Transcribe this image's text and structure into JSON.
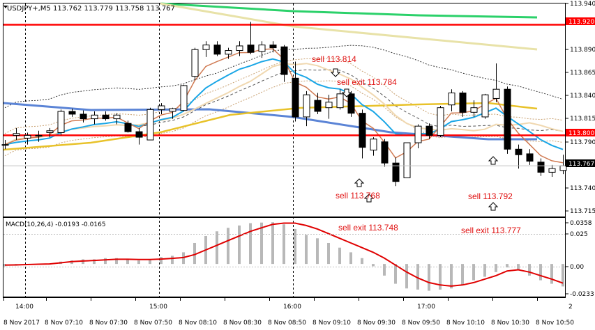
{
  "header": {
    "title": "USDJPY+,M5  113.762 113.779 113.758 113.767"
  },
  "price_axis": {
    "labels": [
      "113.940",
      "113.915",
      "113.890",
      "113.865",
      "113.840",
      "113.815",
      "113.790",
      "113.765",
      "113.740",
      "113.715"
    ],
    "badges": [
      {
        "text": "113.920",
        "color": "#ff0000"
      },
      {
        "text": "113.800",
        "color": "#ff0000"
      },
      {
        "text": "113.767",
        "color": "#000000"
      }
    ]
  },
  "macd": {
    "title": "MACD(10,26,4) -0.0193 -0.0165",
    "axis_labels": [
      "0.0358",
      "0.025",
      "0.00",
      "-0.0233"
    ]
  },
  "time_axis": {
    "top_labels": [
      "14:00",
      "15:00",
      "16:00",
      "17:00"
    ],
    "bottom_labels": [
      "8 Nov 2017",
      "8 Nov 07:10",
      "8 Nov 07:30",
      "8 Nov 07:50",
      "8 Nov 08:10",
      "8 Nov 08:30",
      "8 Nov 08:50",
      "8 Nov 09:10",
      "8 Nov 09:30",
      "8 Nov 09:50",
      "8 Nov 10:10",
      "8 Nov 10:30",
      "8 Nov 10:50"
    ]
  },
  "annotations": [
    {
      "text": "sell 113.814",
      "color": "#e01010"
    },
    {
      "text": "sell exit 113.784",
      "color": "#e01010"
    },
    {
      "text": "sell 113.768",
      "color": "#e01010"
    },
    {
      "text": "sell 113.792",
      "color": "#e01010"
    },
    {
      "text": "sell exit 113.748",
      "color": "#e01010"
    },
    {
      "text": "sell exit 113.777",
      "color": "#e01010"
    }
  ],
  "levels": [
    {
      "price": 113.92,
      "color": "#ff0000"
    },
    {
      "price": 113.8,
      "color": "#ff0000"
    }
  ],
  "chart_data": {
    "type": "candlestick",
    "symbol": "USDJPY+",
    "timeframe": "M5",
    "ylim": [
      113.712,
      113.943
    ],
    "candles": [
      {
        "o": 113.79,
        "h": 113.795,
        "l": 113.785,
        "c": 113.79
      },
      {
        "o": 113.8,
        "h": 113.808,
        "l": 113.795,
        "c": 113.802
      },
      {
        "o": 113.797,
        "h": 113.803,
        "l": 113.79,
        "c": 113.8
      },
      {
        "o": 113.8,
        "h": 113.805,
        "l": 113.793,
        "c": 113.8
      },
      {
        "o": 113.803,
        "h": 113.808,
        "l": 113.798,
        "c": 113.805
      },
      {
        "o": 113.803,
        "h": 113.828,
        "l": 113.8,
        "c": 113.826
      },
      {
        "o": 113.826,
        "h": 113.829,
        "l": 113.82,
        "c": 113.823
      },
      {
        "o": 113.823,
        "h": 113.827,
        "l": 113.814,
        "c": 113.818
      },
      {
        "o": 113.818,
        "h": 113.826,
        "l": 113.812,
        "c": 113.822
      },
      {
        "o": 113.822,
        "h": 113.826,
        "l": 113.816,
        "c": 113.818
      },
      {
        "o": 113.818,
        "h": 113.824,
        "l": 113.812,
        "c": 113.822
      },
      {
        "o": 113.813,
        "h": 113.816,
        "l": 113.803,
        "c": 113.804
      },
      {
        "o": 113.804,
        "h": 113.808,
        "l": 113.79,
        "c": 113.798
      },
      {
        "o": 113.795,
        "h": 113.83,
        "l": 113.795,
        "c": 113.828
      },
      {
        "o": 113.828,
        "h": 113.835,
        "l": 113.823,
        "c": 113.832
      },
      {
        "o": 113.826,
        "h": 113.83,
        "l": 113.818,
        "c": 113.829
      },
      {
        "o": 113.827,
        "h": 113.855,
        "l": 113.826,
        "c": 113.854
      },
      {
        "o": 113.864,
        "h": 113.895,
        "l": 113.86,
        "c": 113.893
      },
      {
        "o": 113.893,
        "h": 113.902,
        "l": 113.885,
        "c": 113.898
      },
      {
        "o": 113.898,
        "h": 113.902,
        "l": 113.886,
        "c": 113.888
      },
      {
        "o": 113.888,
        "h": 113.895,
        "l": 113.883,
        "c": 113.892
      },
      {
        "o": 113.892,
        "h": 113.902,
        "l": 113.886,
        "c": 113.897
      },
      {
        "o": 113.898,
        "h": 113.923,
        "l": 113.888,
        "c": 113.89
      },
      {
        "o": 113.891,
        "h": 113.902,
        "l": 113.884,
        "c": 113.898
      },
      {
        "o": 113.898,
        "h": 113.902,
        "l": 113.89,
        "c": 113.895
      },
      {
        "o": 113.896,
        "h": 113.898,
        "l": 113.858,
        "c": 113.866
      },
      {
        "o": 113.862,
        "h": 113.88,
        "l": 113.815,
        "c": 113.82
      },
      {
        "o": 113.82,
        "h": 113.848,
        "l": 113.81,
        "c": 113.844
      },
      {
        "o": 113.838,
        "h": 113.846,
        "l": 113.823,
        "c": 113.826
      },
      {
        "o": 113.83,
        "h": 113.844,
        "l": 113.818,
        "c": 113.836
      },
      {
        "o": 113.83,
        "h": 113.85,
        "l": 113.828,
        "c": 113.845
      },
      {
        "o": 113.845,
        "h": 113.848,
        "l": 113.82,
        "c": 113.824
      },
      {
        "o": 113.824,
        "h": 113.828,
        "l": 113.775,
        "c": 113.787
      },
      {
        "o": 113.784,
        "h": 113.798,
        "l": 113.778,
        "c": 113.796
      },
      {
        "o": 113.793,
        "h": 113.796,
        "l": 113.766,
        "c": 113.77
      },
      {
        "o": 113.77,
        "h": 113.776,
        "l": 113.745,
        "c": 113.75
      },
      {
        "o": 113.754,
        "h": 113.792,
        "l": 113.754,
        "c": 113.792
      },
      {
        "o": 113.792,
        "h": 113.812,
        "l": 113.786,
        "c": 113.81
      },
      {
        "o": 113.81,
        "h": 113.813,
        "l": 113.796,
        "c": 113.8
      },
      {
        "o": 113.8,
        "h": 113.832,
        "l": 113.798,
        "c": 113.83
      },
      {
        "o": 113.833,
        "h": 113.85,
        "l": 113.826,
        "c": 113.846
      },
      {
        "o": 113.846,
        "h": 113.848,
        "l": 113.82,
        "c": 113.825
      },
      {
        "o": 113.825,
        "h": 113.838,
        "l": 113.82,
        "c": 113.83
      },
      {
        "o": 113.82,
        "h": 113.845,
        "l": 113.818,
        "c": 113.844
      },
      {
        "o": 113.84,
        "h": 113.878,
        "l": 113.836,
        "c": 113.85
      },
      {
        "o": 113.85,
        "h": 113.853,
        "l": 113.78,
        "c": 113.785
      },
      {
        "o": 113.785,
        "h": 113.79,
        "l": 113.764,
        "c": 113.779
      },
      {
        "o": 113.78,
        "h": 113.785,
        "l": 113.768,
        "c": 113.772
      },
      {
        "o": 113.771,
        "h": 113.775,
        "l": 113.756,
        "c": 113.76
      },
      {
        "o": 113.76,
        "h": 113.768,
        "l": 113.755,
        "c": 113.764
      },
      {
        "o": 113.762,
        "h": 113.779,
        "l": 113.758,
        "c": 113.767
      }
    ],
    "macd_histogram": [
      -0.002,
      -0.0015,
      -0.001,
      -0.0005,
      0.0,
      0.002,
      0.003,
      0.004,
      0.004,
      0.005,
      0.005,
      0.004,
      0.003,
      0.004,
      0.006,
      0.007,
      0.01,
      0.018,
      0.024,
      0.028,
      0.031,
      0.033,
      0.035,
      0.0355,
      0.0358,
      0.034,
      0.03,
      0.025,
      0.022,
      0.018,
      0.014,
      0.01,
      0.005,
      -0.002,
      -0.01,
      -0.017,
      -0.021,
      -0.022,
      -0.023,
      -0.022,
      -0.021,
      -0.018,
      -0.014,
      -0.011,
      -0.007,
      -0.003,
      -0.005,
      -0.01,
      -0.014,
      -0.017,
      -0.0193
    ],
    "macd_signal": [
      -0.001,
      -0.0008,
      -0.0005,
      -0.0002,
      0.0,
      0.001,
      0.002,
      0.0025,
      0.003,
      0.0035,
      0.004,
      0.004,
      0.0038,
      0.0038,
      0.0042,
      0.0048,
      0.0055,
      0.008,
      0.012,
      0.016,
      0.02,
      0.024,
      0.028,
      0.031,
      0.034,
      0.035,
      0.035,
      0.033,
      0.03,
      0.026,
      0.022,
      0.018,
      0.014,
      0.01,
      0.005,
      -0.001,
      -0.007,
      -0.012,
      -0.016,
      -0.018,
      -0.019,
      -0.018,
      -0.016,
      -0.013,
      -0.01,
      -0.006,
      -0.005,
      -0.007,
      -0.01,
      -0.013,
      -0.0165
    ],
    "macd_ylim": [
      -0.028,
      0.0395
    ]
  }
}
